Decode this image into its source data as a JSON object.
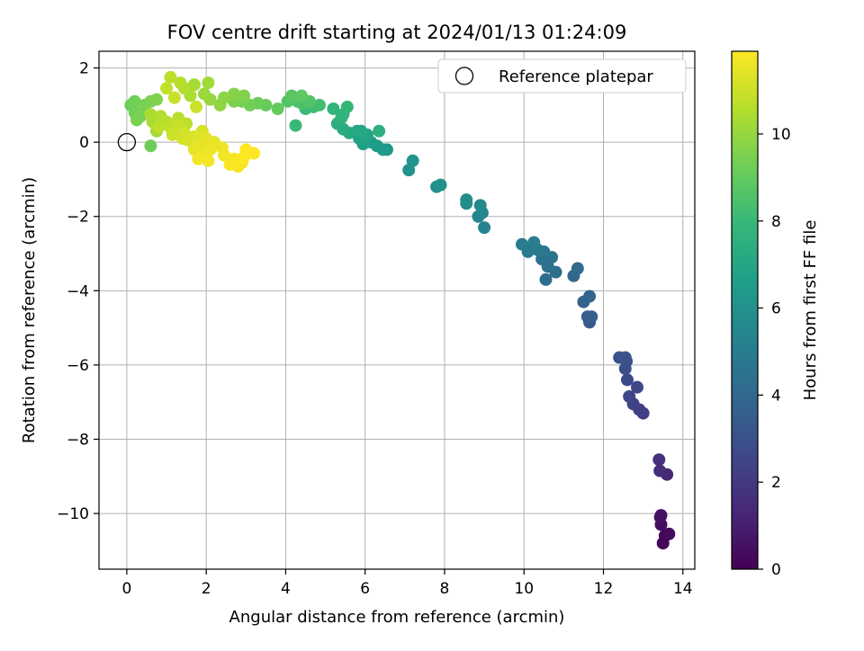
{
  "chart_data": {
    "type": "scatter",
    "title": "FOV centre drift starting at 2024/01/13 01:24:09",
    "xlabel": "Angular distance from reference (arcmin)",
    "ylabel": "Rotation from reference (arcmin)",
    "xlim": [
      -0.7,
      14.3
    ],
    "ylim": [
      -11.5,
      2.45
    ],
    "xticks": [
      0,
      2,
      4,
      6,
      8,
      10,
      12,
      14
    ],
    "yticks": [
      -10,
      -8,
      -6,
      -4,
      -2,
      0,
      2
    ],
    "grid": true,
    "legend": {
      "placement": "top-right",
      "entries": [
        "Reference platepar"
      ]
    },
    "reference_point": {
      "x": 0,
      "y": 0
    },
    "colorbar": {
      "label": "Hours from first FF file",
      "colormap": "viridis",
      "range": [
        0,
        11.9
      ],
      "ticks": [
        0,
        2,
        4,
        6,
        8,
        10
      ]
    },
    "colormap_stops": [
      "#440154",
      "#482878",
      "#3e4989",
      "#31688e",
      "#26828e",
      "#1f9e89",
      "#35b779",
      "#6ece58",
      "#b5de2b",
      "#fde725"
    ],
    "marker_edge_color": "#000000",
    "points": [
      {
        "x": 13.5,
        "y": -10.8,
        "c": 0.1
      },
      {
        "x": 13.55,
        "y": -10.6,
        "c": 0.2
      },
      {
        "x": 13.65,
        "y": -10.55,
        "c": 0.3
      },
      {
        "x": 13.45,
        "y": -10.3,
        "c": 0.4
      },
      {
        "x": 13.43,
        "y": -10.1,
        "c": 0.5
      },
      {
        "x": 13.45,
        "y": -10.05,
        "c": 0.6
      },
      {
        "x": 13.6,
        "y": -8.95,
        "c": 1.3
      },
      {
        "x": 13.42,
        "y": -8.85,
        "c": 1.5
      },
      {
        "x": 13.4,
        "y": -8.55,
        "c": 1.6
      },
      {
        "x": 13.0,
        "y": -7.3,
        "c": 2.2
      },
      {
        "x": 12.9,
        "y": -7.2,
        "c": 2.3
      },
      {
        "x": 12.75,
        "y": -7.05,
        "c": 2.4
      },
      {
        "x": 12.65,
        "y": -6.85,
        "c": 2.5
      },
      {
        "x": 12.85,
        "y": -6.6,
        "c": 2.6
      },
      {
        "x": 12.6,
        "y": -6.4,
        "c": 2.7
      },
      {
        "x": 12.55,
        "y": -6.1,
        "c": 2.8
      },
      {
        "x": 12.58,
        "y": -5.9,
        "c": 2.9
      },
      {
        "x": 12.4,
        "y": -5.8,
        "c": 3.0
      },
      {
        "x": 12.55,
        "y": -5.8,
        "c": 3.1
      },
      {
        "x": 11.65,
        "y": -4.85,
        "c": 3.4
      },
      {
        "x": 11.6,
        "y": -4.7,
        "c": 3.5
      },
      {
        "x": 11.7,
        "y": -4.7,
        "c": 3.6
      },
      {
        "x": 11.5,
        "y": -4.3,
        "c": 3.7
      },
      {
        "x": 11.65,
        "y": -4.15,
        "c": 3.8
      },
      {
        "x": 11.25,
        "y": -3.6,
        "c": 4.0
      },
      {
        "x": 11.35,
        "y": -3.4,
        "c": 4.1
      },
      {
        "x": 10.55,
        "y": -3.7,
        "c": 4.2
      },
      {
        "x": 10.8,
        "y": -3.5,
        "c": 4.3
      },
      {
        "x": 10.6,
        "y": -3.35,
        "c": 4.4
      },
      {
        "x": 10.45,
        "y": -3.15,
        "c": 4.5
      },
      {
        "x": 10.7,
        "y": -3.1,
        "c": 4.6
      },
      {
        "x": 10.5,
        "y": -2.95,
        "c": 4.7
      },
      {
        "x": 10.35,
        "y": -2.9,
        "c": 4.8
      },
      {
        "x": 10.1,
        "y": -2.95,
        "c": 4.9
      },
      {
        "x": 9.95,
        "y": -2.75,
        "c": 5.0
      },
      {
        "x": 10.25,
        "y": -2.7,
        "c": 5.1
      },
      {
        "x": 9.0,
        "y": -2.3,
        "c": 5.3
      },
      {
        "x": 8.85,
        "y": -2.0,
        "c": 5.4
      },
      {
        "x": 8.95,
        "y": -1.9,
        "c": 5.5
      },
      {
        "x": 8.9,
        "y": -1.7,
        "c": 5.6
      },
      {
        "x": 8.55,
        "y": -1.65,
        "c": 5.7
      },
      {
        "x": 8.55,
        "y": -1.55,
        "c": 5.8
      },
      {
        "x": 7.8,
        "y": -1.2,
        "c": 5.9
      },
      {
        "x": 7.9,
        "y": -1.15,
        "c": 6.0
      },
      {
        "x": 7.1,
        "y": -0.75,
        "c": 6.1
      },
      {
        "x": 7.2,
        "y": -0.5,
        "c": 6.2
      },
      {
        "x": 6.55,
        "y": -0.2,
        "c": 6.3
      },
      {
        "x": 6.45,
        "y": -0.2,
        "c": 6.4
      },
      {
        "x": 6.3,
        "y": -0.1,
        "c": 6.5
      },
      {
        "x": 6.15,
        "y": 0.0,
        "c": 6.6
      },
      {
        "x": 5.95,
        "y": -0.05,
        "c": 6.7
      },
      {
        "x": 5.85,
        "y": 0.1,
        "c": 6.8
      },
      {
        "x": 6.05,
        "y": 0.2,
        "c": 6.9
      },
      {
        "x": 5.8,
        "y": 0.3,
        "c": 7.0
      },
      {
        "x": 5.9,
        "y": 0.3,
        "c": 7.1
      },
      {
        "x": 5.6,
        "y": 0.25,
        "c": 7.2
      },
      {
        "x": 5.45,
        "y": 0.35,
        "c": 7.3
      },
      {
        "x": 5.3,
        "y": 0.5,
        "c": 7.4
      },
      {
        "x": 6.35,
        "y": 0.3,
        "c": 7.5
      },
      {
        "x": 5.4,
        "y": 0.65,
        "c": 7.6
      },
      {
        "x": 5.45,
        "y": 0.75,
        "c": 7.7
      },
      {
        "x": 5.2,
        "y": 0.9,
        "c": 7.8
      },
      {
        "x": 5.55,
        "y": 0.95,
        "c": 7.9
      },
      {
        "x": 4.25,
        "y": 0.45,
        "c": 8.0
      },
      {
        "x": 4.5,
        "y": 0.9,
        "c": 8.1
      },
      {
        "x": 4.7,
        "y": 0.95,
        "c": 8.2
      },
      {
        "x": 4.85,
        "y": 1.0,
        "c": 8.3
      },
      {
        "x": 4.4,
        "y": 1.05,
        "c": 8.4
      },
      {
        "x": 4.3,
        "y": 1.1,
        "c": 8.5
      },
      {
        "x": 4.6,
        "y": 1.1,
        "c": 8.6
      },
      {
        "x": 4.05,
        "y": 1.1,
        "c": 8.7
      },
      {
        "x": 4.15,
        "y": 1.25,
        "c": 8.8
      },
      {
        "x": 4.4,
        "y": 1.25,
        "c": 8.9
      },
      {
        "x": 3.8,
        "y": 0.9,
        "c": 9.0
      },
      {
        "x": 3.5,
        "y": 1.0,
        "c": 9.1
      },
      {
        "x": 3.3,
        "y": 1.05,
        "c": 9.2
      },
      {
        "x": 3.1,
        "y": 1.0,
        "c": 9.3
      },
      {
        "x": 2.9,
        "y": 1.1,
        "c": 9.4
      },
      {
        "x": 2.7,
        "y": 1.1,
        "c": 9.5
      },
      {
        "x": 2.95,
        "y": 1.25,
        "c": 9.6
      },
      {
        "x": 2.7,
        "y": 1.3,
        "c": 9.7
      },
      {
        "x": 2.45,
        "y": 1.2,
        "c": 9.8
      },
      {
        "x": 2.35,
        "y": 1.0,
        "c": 9.9
      },
      {
        "x": 2.1,
        "y": 1.15,
        "c": 10.0
      },
      {
        "x": 1.95,
        "y": 1.3,
        "c": 10.1
      },
      {
        "x": 2.05,
        "y": 1.6,
        "c": 10.2
      },
      {
        "x": 1.7,
        "y": 1.55,
        "c": 10.3
      },
      {
        "x": 1.6,
        "y": 1.25,
        "c": 10.4
      },
      {
        "x": 1.45,
        "y": 1.45,
        "c": 10.5
      },
      {
        "x": 1.35,
        "y": 1.6,
        "c": 10.6
      },
      {
        "x": 1.1,
        "y": 1.75,
        "c": 10.7
      },
      {
        "x": 1.0,
        "y": 1.45,
        "c": 10.8
      },
      {
        "x": 1.2,
        "y": 1.2,
        "c": 10.9
      },
      {
        "x": 1.75,
        "y": 0.95,
        "c": 11.0
      },
      {
        "x": 0.75,
        "y": 1.15,
        "c": 9.6
      },
      {
        "x": 0.6,
        "y": 1.1,
        "c": 9.5
      },
      {
        "x": 0.45,
        "y": 1.0,
        "c": 9.4
      },
      {
        "x": 0.2,
        "y": 1.1,
        "c": 9.3
      },
      {
        "x": 0.1,
        "y": 1.0,
        "c": 9.2
      },
      {
        "x": 0.2,
        "y": 0.8,
        "c": 9.3
      },
      {
        "x": 0.35,
        "y": 0.7,
        "c": 9.4
      },
      {
        "x": 0.25,
        "y": 0.6,
        "c": 9.5
      },
      {
        "x": 0.6,
        "y": -0.1,
        "c": 9.2
      },
      {
        "x": 0.65,
        "y": 0.55,
        "c": 10.3
      },
      {
        "x": 0.6,
        "y": 0.75,
        "c": 10.4
      },
      {
        "x": 0.85,
        "y": 0.7,
        "c": 10.5
      },
      {
        "x": 1.0,
        "y": 0.55,
        "c": 10.6
      },
      {
        "x": 0.8,
        "y": 0.4,
        "c": 10.7
      },
      {
        "x": 1.1,
        "y": 0.4,
        "c": 10.8
      },
      {
        "x": 1.3,
        "y": 0.45,
        "c": 10.9
      },
      {
        "x": 1.15,
        "y": 0.2,
        "c": 11.0
      },
      {
        "x": 1.45,
        "y": 0.25,
        "c": 11.1
      },
      {
        "x": 1.55,
        "y": 0.05,
        "c": 11.2
      },
      {
        "x": 1.4,
        "y": 0.1,
        "c": 11.1
      },
      {
        "x": 1.7,
        "y": 0.15,
        "c": 11.3
      },
      {
        "x": 1.9,
        "y": 0.3,
        "c": 11.2
      },
      {
        "x": 2.0,
        "y": 0.1,
        "c": 11.4
      },
      {
        "x": 1.85,
        "y": -0.1,
        "c": 11.5
      },
      {
        "x": 2.1,
        "y": -0.2,
        "c": 11.6
      },
      {
        "x": 1.7,
        "y": -0.2,
        "c": 11.5
      },
      {
        "x": 1.95,
        "y": -0.35,
        "c": 11.6
      },
      {
        "x": 2.2,
        "y": 0.0,
        "c": 11.4
      },
      {
        "x": 1.8,
        "y": -0.45,
        "c": 11.7
      },
      {
        "x": 2.05,
        "y": -0.5,
        "c": 11.7
      },
      {
        "x": 2.45,
        "y": -0.35,
        "c": 11.7
      },
      {
        "x": 2.6,
        "y": -0.6,
        "c": 11.8
      },
      {
        "x": 2.8,
        "y": -0.65,
        "c": 11.8
      },
      {
        "x": 2.9,
        "y": -0.55,
        "c": 11.8
      },
      {
        "x": 2.95,
        "y": -0.4,
        "c": 11.9
      },
      {
        "x": 3.0,
        "y": -0.2,
        "c": 11.9
      },
      {
        "x": 3.2,
        "y": -0.3,
        "c": 11.9
      },
      {
        "x": 2.7,
        "y": -0.45,
        "c": 11.8
      },
      {
        "x": 2.4,
        "y": -0.15,
        "c": 11.6
      },
      {
        "x": 2.1,
        "y": -0.05,
        "c": 11.5
      },
      {
        "x": 1.3,
        "y": 0.65,
        "c": 10.6
      },
      {
        "x": 1.5,
        "y": 0.5,
        "c": 10.7
      },
      {
        "x": 0.75,
        "y": 0.3,
        "c": 10.2
      }
    ]
  }
}
